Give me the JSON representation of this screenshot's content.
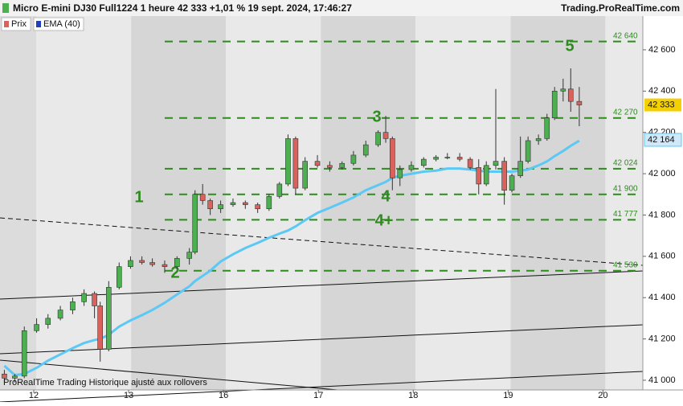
{
  "chart_data": {
    "type": "candlestick",
    "title": "Micro E-mini DJ30 Full1224 1 heure 42 333 +1,01 % 19 sept. 2024, 17:46:27",
    "source": "Trading.ProRealTime.com",
    "footer": "ProRealTime Trading  Historique ajusté aux rollovers",
    "price_name": "Prix",
    "colors": {
      "up": "#4caf50",
      "down": "#d9635c",
      "ema": "#5bc8f5",
      "level": "#2e8b1e"
    },
    "x": [
      -0.31,
      -0.2,
      -0.1,
      0.03,
      0.15,
      0.28,
      0.41,
      0.53,
      0.64,
      0.7,
      0.79,
      0.9,
      1.02,
      1.14,
      1.25,
      1.38,
      1.51,
      1.64,
      1.7,
      1.78,
      1.86,
      1.97,
      2.1,
      2.23,
      2.36,
      2.48,
      2.59,
      2.68,
      2.76,
      2.86,
      2.99,
      3.12,
      3.25,
      3.37,
      3.5,
      3.63,
      3.71,
      3.78,
      3.86,
      3.98,
      4.11,
      4.24,
      4.36,
      4.49,
      4.6,
      4.69,
      4.77,
      4.87,
      4.96,
      5.04,
      5.13,
      5.21,
      5.32,
      5.41,
      5.49,
      5.58,
      5.66,
      5.75
    ],
    "open": [
      41030,
      41010,
      41020,
      41240,
      41270,
      41300,
      41340,
      41380,
      41420,
      41360,
      41150,
      41450,
      41550,
      41580,
      41570,
      41560,
      41550,
      41590,
      41620,
      41900,
      41870,
      41830,
      41850,
      41860,
      41850,
      41830,
      41890,
      41950,
      42170,
      41930,
      42060,
      42040,
      42030,
      42050,
      42090,
      42140,
      42200,
      42170,
      41980,
      42020,
      42040,
      42070,
      42080,
      42080,
      42070,
      42030,
      41950,
      42040,
      42060,
      41920,
      41990,
      42060,
      42160,
      42170,
      42270,
      42400,
      42410,
      42350
    ],
    "high": [
      41050,
      41030,
      41260,
      41300,
      41320,
      41360,
      41400,
      41440,
      41430,
      41380,
      41480,
      41570,
      41600,
      41600,
      41590,
      41580,
      41600,
      41640,
      41920,
      41950,
      41880,
      41870,
      41880,
      41870,
      41860,
      41900,
      41960,
      42190,
      42180,
      42080,
      42090,
      42060,
      42060,
      42110,
      42160,
      42210,
      42280,
      42180,
      42040,
      42060,
      42080,
      42090,
      42100,
      42100,
      42080,
      42070,
      42060,
      42410,
      42080,
      42000,
      42180,
      42180,
      42190,
      42290,
      42420,
      42460,
      42510,
      42420
    ],
    "low": [
      40990,
      40990,
      41010,
      41230,
      41250,
      41290,
      41320,
      41360,
      41300,
      41090,
      41140,
      41440,
      41540,
      41560,
      41550,
      41520,
      41540,
      41560,
      41610,
      41850,
      41800,
      41810,
      41840,
      41830,
      41810,
      41820,
      41880,
      41940,
      41900,
      41920,
      42030,
      42010,
      42020,
      42040,
      42080,
      42130,
      42150,
      41920,
      41940,
      42010,
      42030,
      42060,
      42070,
      42060,
      42020,
      41900,
      41940,
      42020,
      41850,
      41910,
      41980,
      42050,
      42140,
      42160,
      42260,
      42350,
      42300,
      42230
    ],
    "close": [
      41010,
      41020,
      41240,
      41270,
      41300,
      41340,
      41380,
      41420,
      41360,
      41150,
      41450,
      41550,
      41580,
      41570,
      41560,
      41550,
      41590,
      41620,
      41900,
      41870,
      41830,
      41850,
      41860,
      41850,
      41830,
      41890,
      41950,
      42170,
      41930,
      42060,
      42040,
      42030,
      42050,
      42090,
      42140,
      42200,
      42170,
      41980,
      42020,
      42040,
      42070,
      42080,
      42080,
      42070,
      42030,
      41950,
      42040,
      42060,
      41920,
      41990,
      42060,
      42160,
      42170,
      42270,
      42400,
      42410,
      42350,
      42333
    ],
    "ema": {
      "name": "EMA (40)",
      "values": [
        41070,
        41025,
        41030,
        41060,
        41095,
        41125,
        41155,
        41180,
        41195,
        41200,
        41220,
        41260,
        41290,
        41315,
        41340,
        41375,
        41415,
        41455,
        41480,
        41505,
        41530,
        41575,
        41610,
        41640,
        41665,
        41690,
        41710,
        41725,
        41745,
        41775,
        41810,
        41835,
        41860,
        41885,
        41920,
        41945,
        41960,
        41980,
        41990,
        42000,
        42010,
        42015,
        42025,
        42025,
        42020,
        42015,
        42010,
        42010,
        42010,
        42010,
        42015,
        42020,
        42040,
        42060,
        42085,
        42110,
        42135,
        42160
      ]
    },
    "last_price": {
      "value": 42333,
      "label": "42 333"
    },
    "last_ema": {
      "value": 42164,
      "label": "42 164"
    },
    "levels": [
      {
        "value": 42640,
        "label": "42 640"
      },
      {
        "value": 42270,
        "label": "42 270"
      },
      {
        "value": 42024,
        "label": "42 024"
      },
      {
        "value": 41900,
        "label": "41 900"
      },
      {
        "value": 41777,
        "label": "41 777"
      },
      {
        "value": 41530,
        "label": "41 530"
      }
    ],
    "annotations": [
      "1",
      "2",
      "3",
      "4",
      "4+",
      "5"
    ],
    "xlim": [
      -0.356,
      6.42
    ],
    "xticks": [
      {
        "value": 0,
        "label": "12"
      },
      {
        "value": 1,
        "label": "13"
      },
      {
        "value": 2,
        "label": "16"
      },
      {
        "value": 3,
        "label": "17"
      },
      {
        "value": 4,
        "label": "18"
      },
      {
        "value": 5,
        "label": "19"
      },
      {
        "value": 6,
        "label": "20"
      }
    ],
    "ylim": [
      40950,
      42685
    ],
    "yticks": [
      {
        "value": 41000,
        "label": "41 000"
      },
      {
        "value": 41200,
        "label": "41 200"
      },
      {
        "value": 41400,
        "label": "41 400"
      },
      {
        "value": 41600,
        "label": "41 600"
      },
      {
        "value": 41800,
        "label": "41 800"
      },
      {
        "value": 42000,
        "label": "42 000"
      },
      {
        "value": 42200,
        "label": "42 200"
      },
      {
        "value": 42400,
        "label": "42 400"
      },
      {
        "value": 42600,
        "label": "42 600"
      }
    ]
  }
}
